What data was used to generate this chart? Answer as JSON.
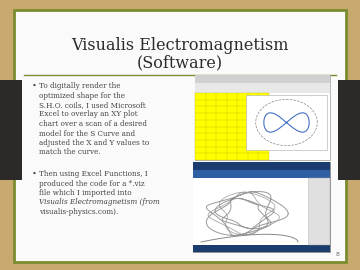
{
  "title_line1": "Visualis Electromagnetism",
  "title_line2": "(Software)",
  "title_fontsize": 11.5,
  "title_color": "#2c2c2c",
  "bg_outer": "#c8a96e",
  "bg_slide": "#fafafa",
  "slide_border_color": "#7a8c2e",
  "bullet1_lines": [
    "To digitally render the",
    "optimized shape for the",
    "S.H.O. coils, I used Microsoft",
    "Excel to overlay an XY plot",
    "chart over a scan of a desired",
    "model for the S Curve and",
    "adjusted the X and Y values to",
    "match the curve."
  ],
  "bullet2_lines": [
    "Then using Excel Functions, I",
    "produced the code for a *.viz",
    "file which I imported into",
    "Visualis Electromagnetism (from",
    "visualis-physics.com)."
  ],
  "bullet2_italic_line": 3,
  "bullet_color": "#444444",
  "bullet_fontsize": 5.2,
  "divider_color": "#7a8c2e",
  "dark_panel_color": "#2c2a28",
  "page_num": "8"
}
